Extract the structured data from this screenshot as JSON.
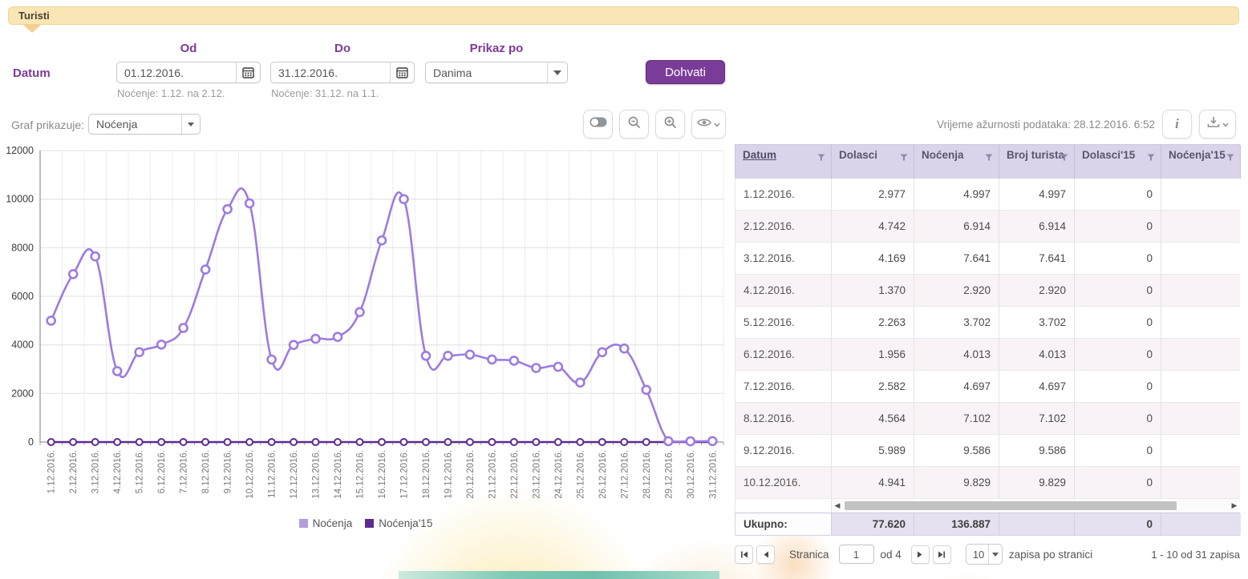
{
  "header": {
    "tab_label": "Turisti"
  },
  "filters": {
    "datum_label": "Datum",
    "od_label": "Od",
    "do_label": "Do",
    "prikaz_label": "Prikaz po",
    "od_value": "01.12.2016.",
    "do_value": "31.12.2016.",
    "od_hint": "Noćenje: 1.12. na 2.12.",
    "do_hint": "Noćenje: 31.12. na 1.1.",
    "prikaz_value": "Danima",
    "dohvati_label": "Dohvati"
  },
  "chart_controls": {
    "graf_label": "Graf prikazuje:",
    "graf_value": "Noćenja",
    "updated_text": "Vrijeme ažurnosti podataka: 28.12.2016. 6:52",
    "info_label": "i"
  },
  "chart_data": {
    "type": "line",
    "title": "",
    "xlabel": "",
    "ylabel": "",
    "ylim": [
      0,
      12000
    ],
    "ytick_step": 2000,
    "grid": true,
    "legend_position": "bottom",
    "x": [
      "1.12.2016.",
      "2.12.2016.",
      "3.12.2016.",
      "4.12.2016.",
      "5.12.2016.",
      "6.12.2016.",
      "7.12.2016.",
      "8.12.2016.",
      "9.12.2016.",
      "10.12.2016.",
      "11.12.2016.",
      "12.12.2016.",
      "13.12.2016.",
      "14.12.2016.",
      "15.12.2016.",
      "16.12.2016.",
      "17.12.2016.",
      "18.12.2016.",
      "19.12.2016.",
      "20.12.2016.",
      "21.12.2016.",
      "22.12.2016.",
      "23.12.2016.",
      "24.12.2016.",
      "25.12.2016.",
      "26.12.2016.",
      "27.12.2016.",
      "28.12.2016.",
      "29.12.2016.",
      "30.12.2016.",
      "31.12.2016."
    ],
    "series": [
      {
        "name": "Noćenja",
        "color": "#9d7be0",
        "values": [
          4997,
          6914,
          7641,
          2920,
          3702,
          4013,
          4697,
          7102,
          9586,
          9829,
          3400,
          4000,
          4250,
          4330,
          5350,
          8300,
          10000,
          3550,
          3550,
          3600,
          3400,
          3350,
          3050,
          3100,
          2450,
          3700,
          3850,
          2150,
          35,
          30,
          41
        ]
      },
      {
        "name": "Noćenja'15",
        "color": "#5e2b91",
        "values": [
          0,
          0,
          0,
          0,
          0,
          0,
          0,
          0,
          0,
          0,
          0,
          0,
          0,
          0,
          0,
          0,
          0,
          0,
          0,
          0,
          0,
          0,
          0,
          0,
          0,
          0,
          0,
          0,
          0,
          0,
          0
        ]
      }
    ]
  },
  "table": {
    "columns": [
      {
        "label": "Datum",
        "sorted": true
      },
      {
        "label": "Dolasci",
        "sorted": false
      },
      {
        "label": "Noćenja",
        "sorted": false
      },
      {
        "label": "Broj turista",
        "sorted": false
      },
      {
        "label": "Dolasci'15",
        "sorted": false
      },
      {
        "label": "Noćenja'15",
        "sorted": false
      }
    ],
    "rows": [
      [
        "1.12.2016.",
        "2.977",
        "4.997",
        "4.997",
        "0",
        ""
      ],
      [
        "2.12.2016.",
        "4.742",
        "6.914",
        "6.914",
        "0",
        ""
      ],
      [
        "3.12.2016.",
        "4.169",
        "7.641",
        "7.641",
        "0",
        ""
      ],
      [
        "4.12.2016.",
        "1.370",
        "2.920",
        "2.920",
        "0",
        ""
      ],
      [
        "5.12.2016.",
        "2.263",
        "3.702",
        "3.702",
        "0",
        ""
      ],
      [
        "6.12.2016.",
        "1.956",
        "4.013",
        "4.013",
        "0",
        ""
      ],
      [
        "7.12.2016.",
        "2.582",
        "4.697",
        "4.697",
        "0",
        ""
      ],
      [
        "8.12.2016.",
        "4.564",
        "7.102",
        "7.102",
        "0",
        ""
      ],
      [
        "9.12.2016.",
        "5.989",
        "9.586",
        "9.586",
        "0",
        ""
      ],
      [
        "10.12.2016.",
        "4.941",
        "9.829",
        "9.829",
        "0",
        ""
      ]
    ],
    "totals": {
      "label": "Ukupno:",
      "dolasci": "77.620",
      "nocenja": "136.887",
      "broj_turista": "",
      "dolasci15": "0",
      "nocenja15": ""
    }
  },
  "pagination": {
    "stranica_label": "Stranica",
    "page_value": "1",
    "of_label": "od 4",
    "page_size": "10",
    "page_size_label": "zapisa po stranici",
    "range_label": "1 - 10 od 31 zapisa"
  },
  "icons": {
    "calendar": "calendar-grid",
    "dropdown_arrow": "triangle-down",
    "toggle": "toggle-switch",
    "zoom_out": "magnifier-minus",
    "zoom_in": "magnifier-plus",
    "visibility": "eye-chevron",
    "info": "letter-i",
    "download": "tray-arrow-down-chevron",
    "filter": "funnel",
    "pager": "first/prev/next/last triangles"
  },
  "colors": {
    "accent_purple": "#7d3a98",
    "button_purple": "#7b3c99",
    "series_light": "#9d7be0",
    "series_dark": "#5e2b91",
    "tab_yellow": "#fae6b4",
    "table_header": "#dbd3e9",
    "row_alt": "#f9f3f8",
    "totals_bg": "#e6e1f1"
  }
}
